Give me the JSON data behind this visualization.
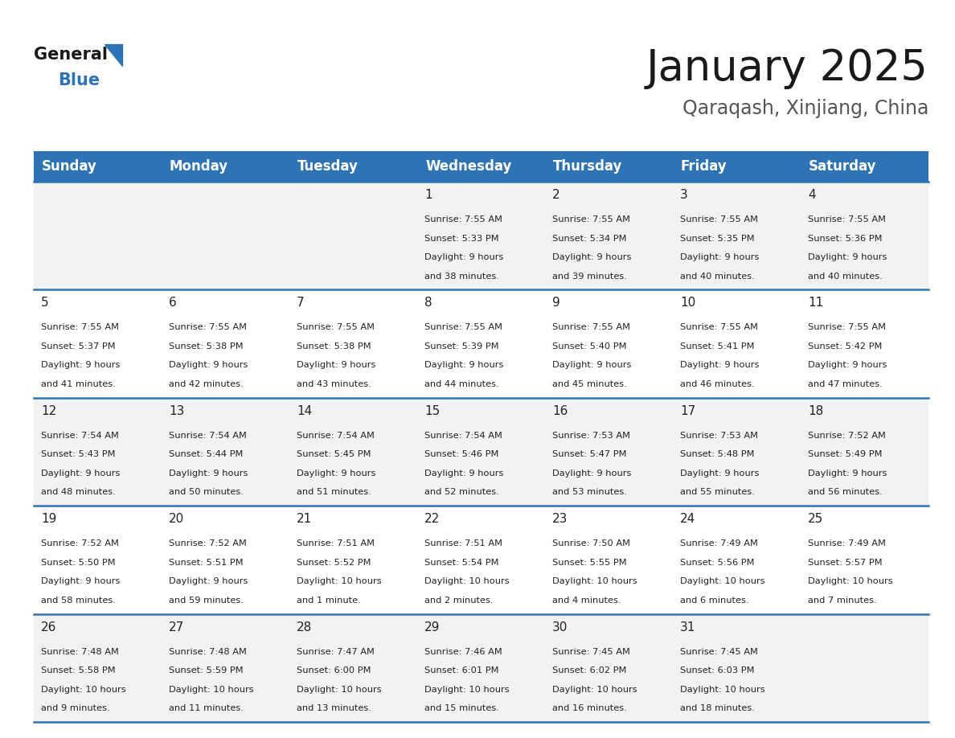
{
  "title": "January 2025",
  "subtitle": "Qaraqash, Xinjiang, China",
  "header_bg": "#2E74B5",
  "header_text_color": "#FFFFFF",
  "days_of_week": [
    "Sunday",
    "Monday",
    "Tuesday",
    "Wednesday",
    "Thursday",
    "Friday",
    "Saturday"
  ],
  "cell_bg_row0": "#F2F2F2",
  "cell_bg_row1": "#FFFFFF",
  "cell_bg_row2": "#F2F2F2",
  "cell_bg_row3": "#FFFFFF",
  "cell_bg_row4": "#F2F2F2",
  "cell_border_color": "#2E74B5",
  "day_text_color": "#222222",
  "info_text_color": "#222222",
  "calendar": [
    [
      {
        "day": "",
        "sunrise": "",
        "sunset": "",
        "daylight_h": "",
        "daylight_m": ""
      },
      {
        "day": "",
        "sunrise": "",
        "sunset": "",
        "daylight_h": "",
        "daylight_m": ""
      },
      {
        "day": "",
        "sunrise": "",
        "sunset": "",
        "daylight_h": "",
        "daylight_m": ""
      },
      {
        "day": "1",
        "sunrise": "7:55 AM",
        "sunset": "5:33 PM",
        "daylight_h": "9 hours",
        "daylight_m": "and 38 minutes."
      },
      {
        "day": "2",
        "sunrise": "7:55 AM",
        "sunset": "5:34 PM",
        "daylight_h": "9 hours",
        "daylight_m": "and 39 minutes."
      },
      {
        "day": "3",
        "sunrise": "7:55 AM",
        "sunset": "5:35 PM",
        "daylight_h": "9 hours",
        "daylight_m": "and 40 minutes."
      },
      {
        "day": "4",
        "sunrise": "7:55 AM",
        "sunset": "5:36 PM",
        "daylight_h": "9 hours",
        "daylight_m": "and 40 minutes."
      }
    ],
    [
      {
        "day": "5",
        "sunrise": "7:55 AM",
        "sunset": "5:37 PM",
        "daylight_h": "9 hours",
        "daylight_m": "and 41 minutes."
      },
      {
        "day": "6",
        "sunrise": "7:55 AM",
        "sunset": "5:38 PM",
        "daylight_h": "9 hours",
        "daylight_m": "and 42 minutes."
      },
      {
        "day": "7",
        "sunrise": "7:55 AM",
        "sunset": "5:38 PM",
        "daylight_h": "9 hours",
        "daylight_m": "and 43 minutes."
      },
      {
        "day": "8",
        "sunrise": "7:55 AM",
        "sunset": "5:39 PM",
        "daylight_h": "9 hours",
        "daylight_m": "and 44 minutes."
      },
      {
        "day": "9",
        "sunrise": "7:55 AM",
        "sunset": "5:40 PM",
        "daylight_h": "9 hours",
        "daylight_m": "and 45 minutes."
      },
      {
        "day": "10",
        "sunrise": "7:55 AM",
        "sunset": "5:41 PM",
        "daylight_h": "9 hours",
        "daylight_m": "and 46 minutes."
      },
      {
        "day": "11",
        "sunrise": "7:55 AM",
        "sunset": "5:42 PM",
        "daylight_h": "9 hours",
        "daylight_m": "and 47 minutes."
      }
    ],
    [
      {
        "day": "12",
        "sunrise": "7:54 AM",
        "sunset": "5:43 PM",
        "daylight_h": "9 hours",
        "daylight_m": "and 48 minutes."
      },
      {
        "day": "13",
        "sunrise": "7:54 AM",
        "sunset": "5:44 PM",
        "daylight_h": "9 hours",
        "daylight_m": "and 50 minutes."
      },
      {
        "day": "14",
        "sunrise": "7:54 AM",
        "sunset": "5:45 PM",
        "daylight_h": "9 hours",
        "daylight_m": "and 51 minutes."
      },
      {
        "day": "15",
        "sunrise": "7:54 AM",
        "sunset": "5:46 PM",
        "daylight_h": "9 hours",
        "daylight_m": "and 52 minutes."
      },
      {
        "day": "16",
        "sunrise": "7:53 AM",
        "sunset": "5:47 PM",
        "daylight_h": "9 hours",
        "daylight_m": "and 53 minutes."
      },
      {
        "day": "17",
        "sunrise": "7:53 AM",
        "sunset": "5:48 PM",
        "daylight_h": "9 hours",
        "daylight_m": "and 55 minutes."
      },
      {
        "day": "18",
        "sunrise": "7:52 AM",
        "sunset": "5:49 PM",
        "daylight_h": "9 hours",
        "daylight_m": "and 56 minutes."
      }
    ],
    [
      {
        "day": "19",
        "sunrise": "7:52 AM",
        "sunset": "5:50 PM",
        "daylight_h": "9 hours",
        "daylight_m": "and 58 minutes."
      },
      {
        "day": "20",
        "sunrise": "7:52 AM",
        "sunset": "5:51 PM",
        "daylight_h": "9 hours",
        "daylight_m": "and 59 minutes."
      },
      {
        "day": "21",
        "sunrise": "7:51 AM",
        "sunset": "5:52 PM",
        "daylight_h": "10 hours",
        "daylight_m": "and 1 minute."
      },
      {
        "day": "22",
        "sunrise": "7:51 AM",
        "sunset": "5:54 PM",
        "daylight_h": "10 hours",
        "daylight_m": "and 2 minutes."
      },
      {
        "day": "23",
        "sunrise": "7:50 AM",
        "sunset": "5:55 PM",
        "daylight_h": "10 hours",
        "daylight_m": "and 4 minutes."
      },
      {
        "day": "24",
        "sunrise": "7:49 AM",
        "sunset": "5:56 PM",
        "daylight_h": "10 hours",
        "daylight_m": "and 6 minutes."
      },
      {
        "day": "25",
        "sunrise": "7:49 AM",
        "sunset": "5:57 PM",
        "daylight_h": "10 hours",
        "daylight_m": "and 7 minutes."
      }
    ],
    [
      {
        "day": "26",
        "sunrise": "7:48 AM",
        "sunset": "5:58 PM",
        "daylight_h": "10 hours",
        "daylight_m": "and 9 minutes."
      },
      {
        "day": "27",
        "sunrise": "7:48 AM",
        "sunset": "5:59 PM",
        "daylight_h": "10 hours",
        "daylight_m": "and 11 minutes."
      },
      {
        "day": "28",
        "sunrise": "7:47 AM",
        "sunset": "6:00 PM",
        "daylight_h": "10 hours",
        "daylight_m": "and 13 minutes."
      },
      {
        "day": "29",
        "sunrise": "7:46 AM",
        "sunset": "6:01 PM",
        "daylight_h": "10 hours",
        "daylight_m": "and 15 minutes."
      },
      {
        "day": "30",
        "sunrise": "7:45 AM",
        "sunset": "6:02 PM",
        "daylight_h": "10 hours",
        "daylight_m": "and 16 minutes."
      },
      {
        "day": "31",
        "sunrise": "7:45 AM",
        "sunset": "6:03 PM",
        "daylight_h": "10 hours",
        "daylight_m": "and 18 minutes."
      },
      {
        "day": "",
        "sunrise": "",
        "sunset": "",
        "daylight_h": "",
        "daylight_m": ""
      }
    ]
  ],
  "logo_general_color": "#1a1a1a",
  "logo_blue_color": "#2E74B5",
  "title_fontsize": 38,
  "subtitle_fontsize": 17,
  "header_fontsize": 12,
  "day_num_fontsize": 11,
  "info_fontsize": 8.2
}
